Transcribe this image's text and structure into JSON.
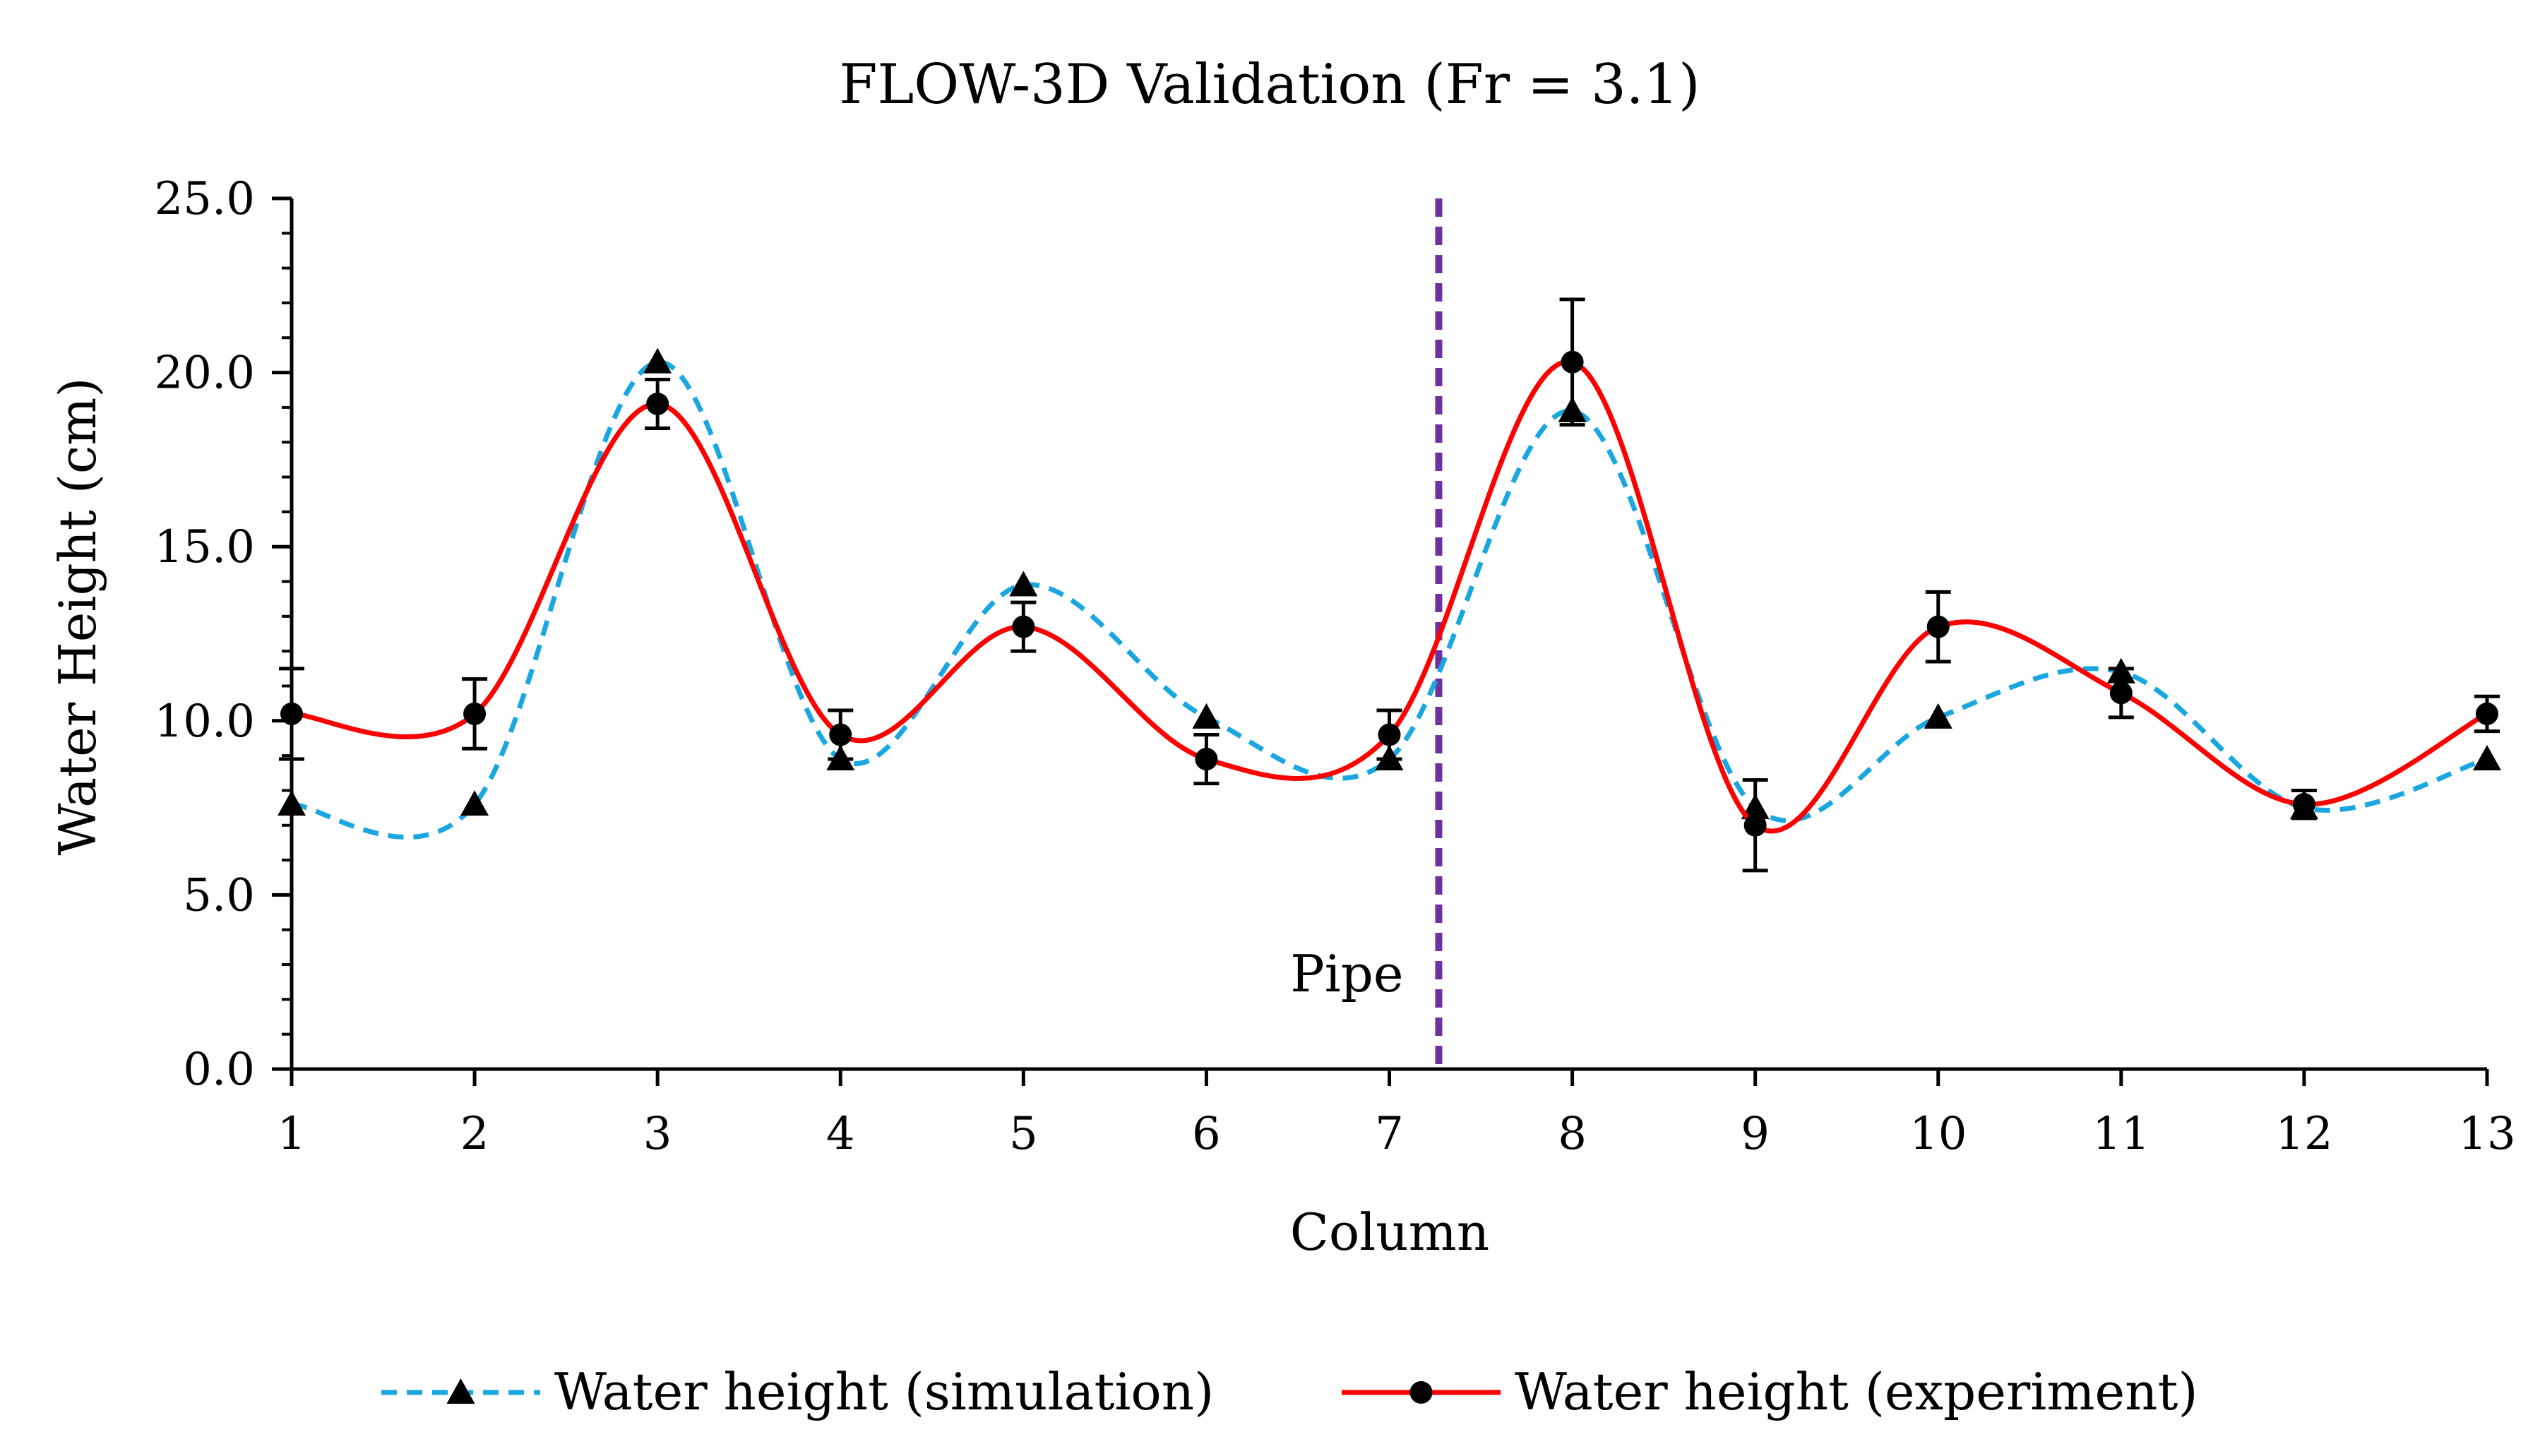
{
  "chart_data": {
    "type": "line",
    "title": "FLOW-3D Validation (Fr = 3.1)",
    "xlabel": "Column",
    "ylabel": "Water Height (cm)",
    "x": [
      1,
      2,
      3,
      4,
      5,
      6,
      7,
      8,
      9,
      10,
      11,
      12,
      13
    ],
    "xlim": [
      1,
      13
    ],
    "ylim": [
      0,
      25
    ],
    "x_tick_labels": [
      "1",
      "2",
      "3",
      "4",
      "5",
      "6",
      "7",
      "8",
      "9",
      "10",
      "11",
      "12",
      "13"
    ],
    "y_tick_labels": [
      "0.0",
      "5.0",
      "10.0",
      "15.0",
      "20.0",
      "25.0"
    ],
    "y_ticks": [
      0,
      5,
      10,
      15,
      20,
      25
    ],
    "y_minor_step": 1,
    "grid": false,
    "legend_position": "bottom",
    "series": [
      {
        "name": "Water height (simulation)",
        "values": [
          7.6,
          7.6,
          20.3,
          8.9,
          13.9,
          10.1,
          8.9,
          18.9,
          7.5,
          10.1,
          11.4,
          7.5,
          8.9
        ],
        "color": "#1AA7E0",
        "line_style": "dashed",
        "marker": "triangle"
      },
      {
        "name": "Water height (experiment)",
        "values": [
          10.2,
          10.2,
          19.1,
          9.6,
          12.7,
          8.9,
          9.6,
          20.3,
          7.0,
          12.7,
          10.8,
          7.6,
          10.2
        ],
        "error": [
          1.3,
          1.0,
          0.7,
          0.7,
          0.7,
          0.7,
          0.7,
          1.8,
          1.3,
          1.0,
          0.7,
          0.4,
          0.5
        ],
        "color": "#FF0000",
        "line_style": "solid",
        "marker": "circle"
      }
    ],
    "annotations": [
      {
        "text": "Pipe",
        "x": 7.27,
        "color": "#7030A0",
        "line_style": "dashed"
      }
    ]
  }
}
